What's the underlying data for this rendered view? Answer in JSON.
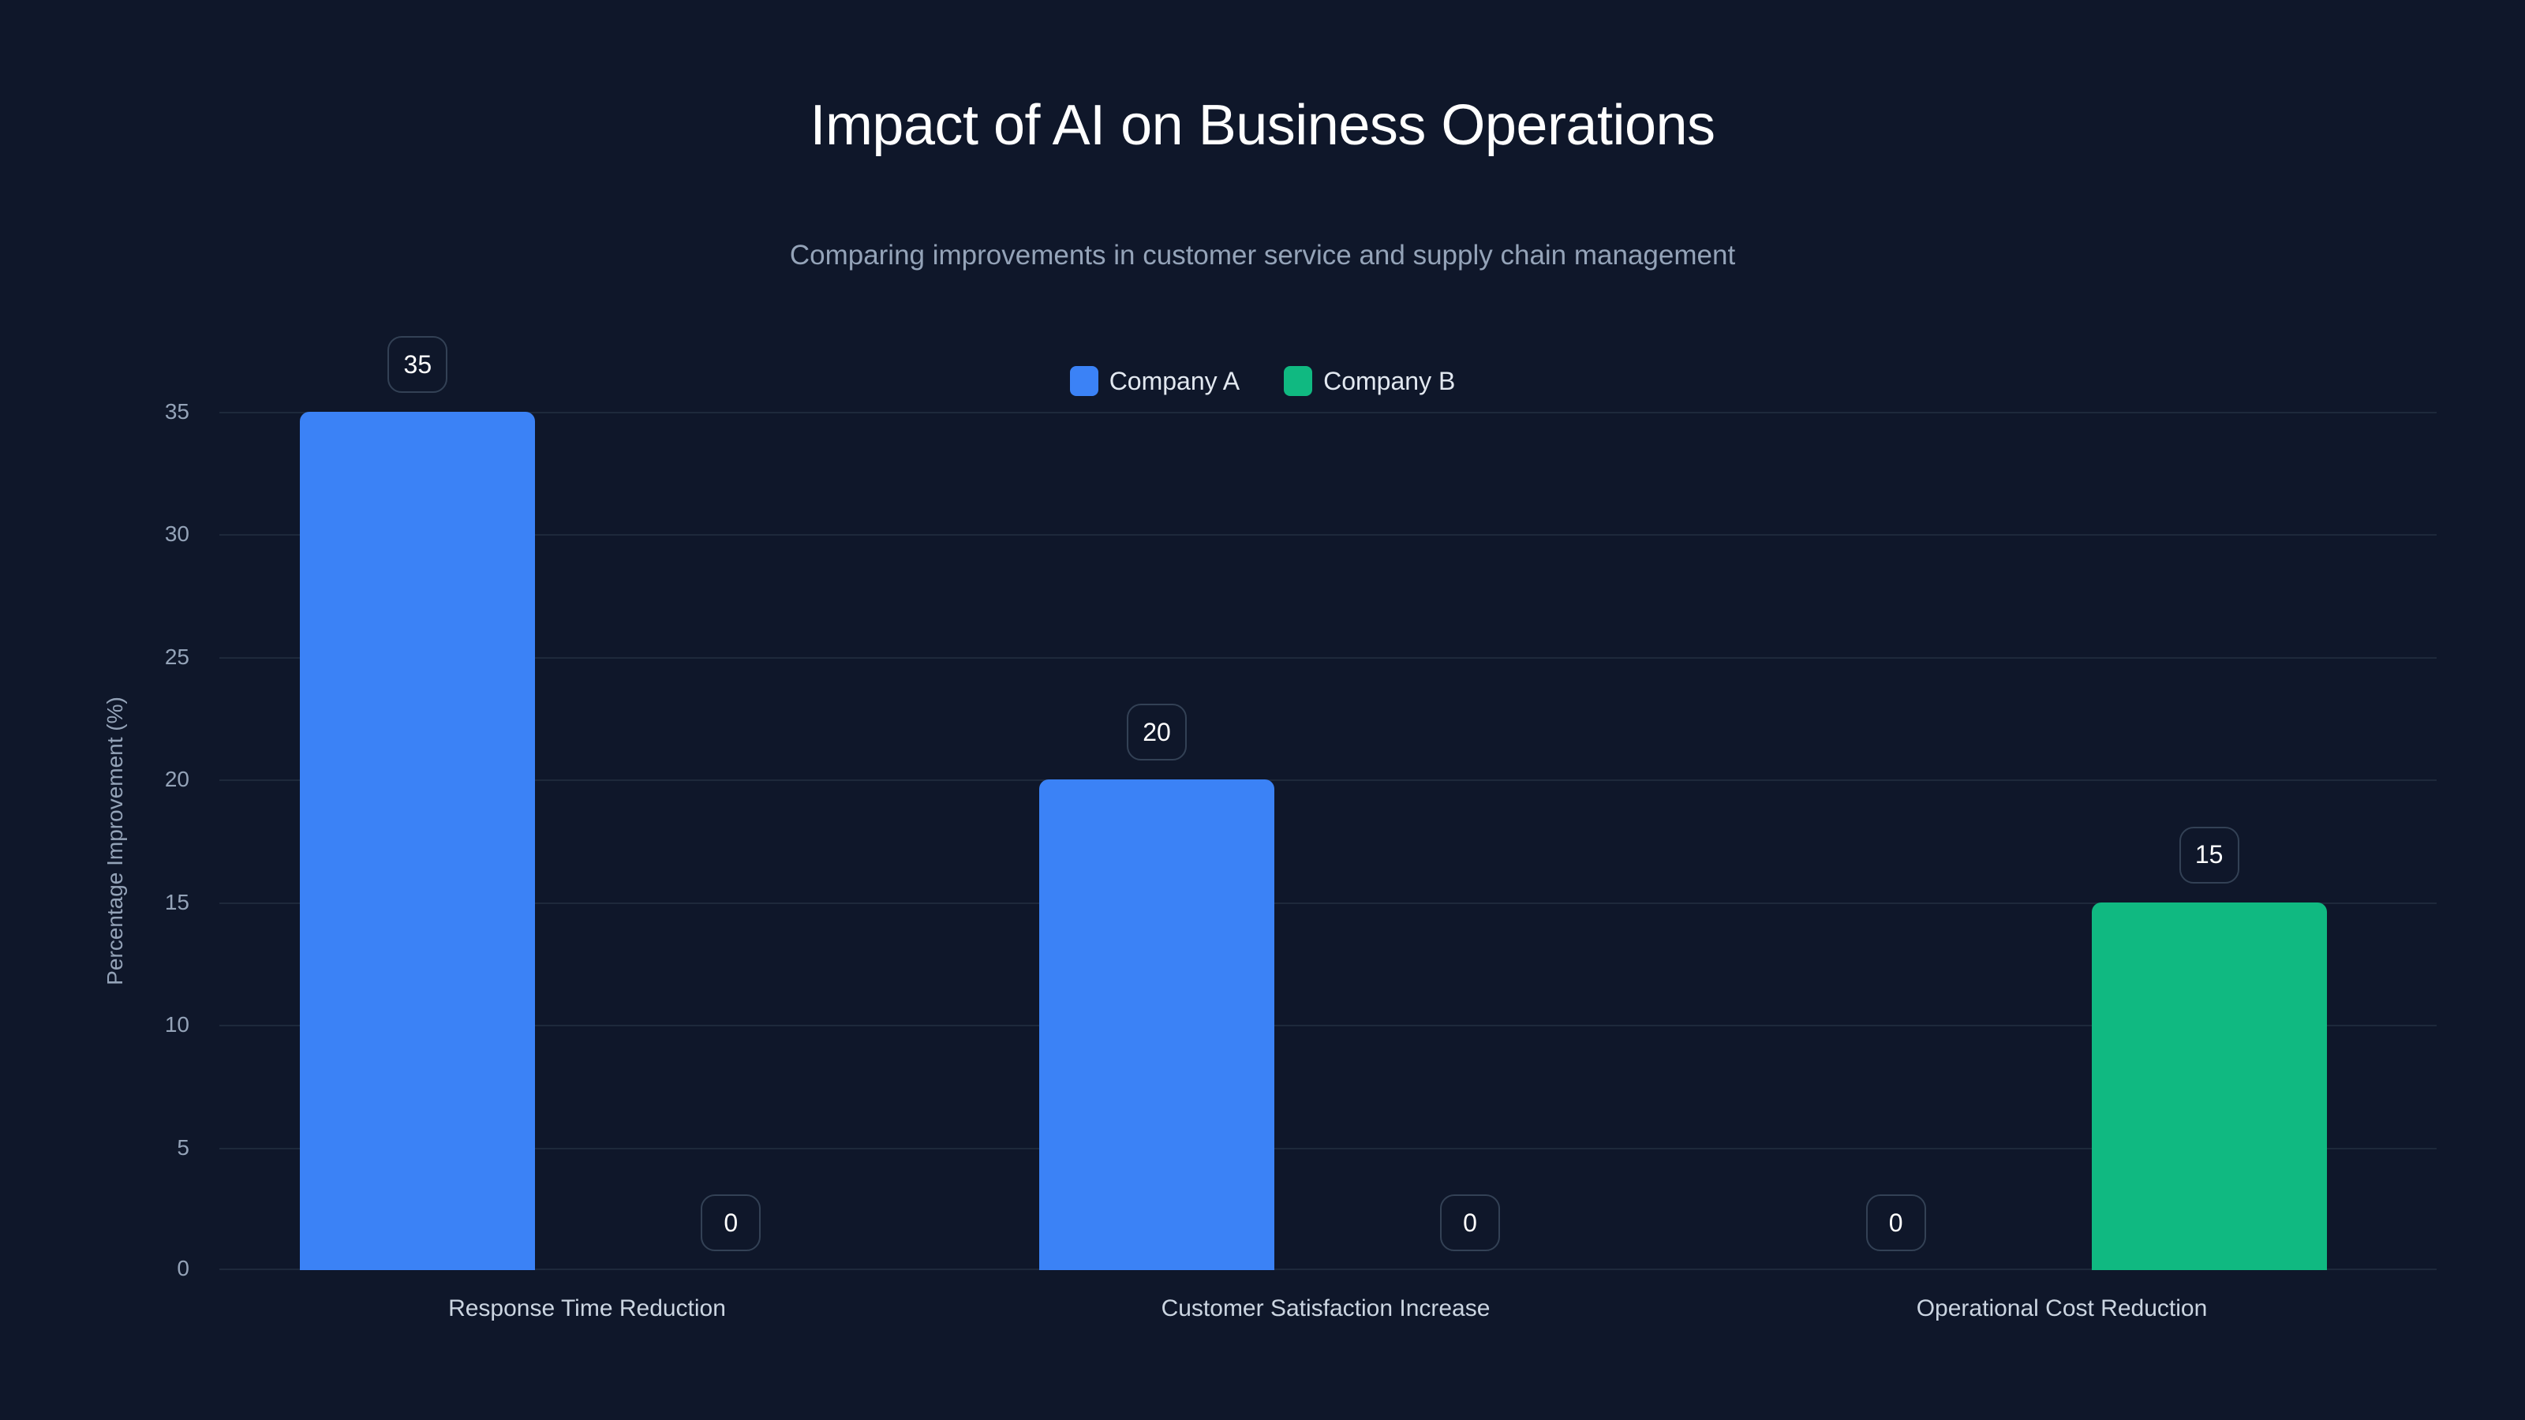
{
  "header": {
    "title": "Impact of AI on Business Operations",
    "subtitle": "Comparing improvements in customer service and supply chain management"
  },
  "legend": [
    {
      "label": "Company A",
      "color": "#3b82f6"
    },
    {
      "label": "Company B",
      "color": "#10b981"
    }
  ],
  "axes": {
    "ylabel": "Percentage Improvement (%)",
    "yticks": [
      "0",
      "5",
      "10",
      "15",
      "20",
      "25",
      "30",
      "35"
    ]
  },
  "chart_data": {
    "type": "bar",
    "title": "Impact of AI on Business Operations",
    "subtitle": "Comparing improvements in customer service and supply chain management",
    "xlabel": "",
    "ylabel": "Percentage Improvement (%)",
    "ylim": [
      0,
      35
    ],
    "yticks": [
      0,
      5,
      10,
      15,
      20,
      25,
      30,
      35
    ],
    "grid": true,
    "legend_position": "top-center",
    "categories": [
      "Response Time Reduction",
      "Customer Satisfaction Increase",
      "Operational Cost Reduction"
    ],
    "series": [
      {
        "name": "Company A",
        "color": "#3b82f6",
        "values": [
          35,
          20,
          0
        ]
      },
      {
        "name": "Company B",
        "color": "#10b981",
        "values": [
          0,
          0,
          15
        ]
      }
    ]
  }
}
